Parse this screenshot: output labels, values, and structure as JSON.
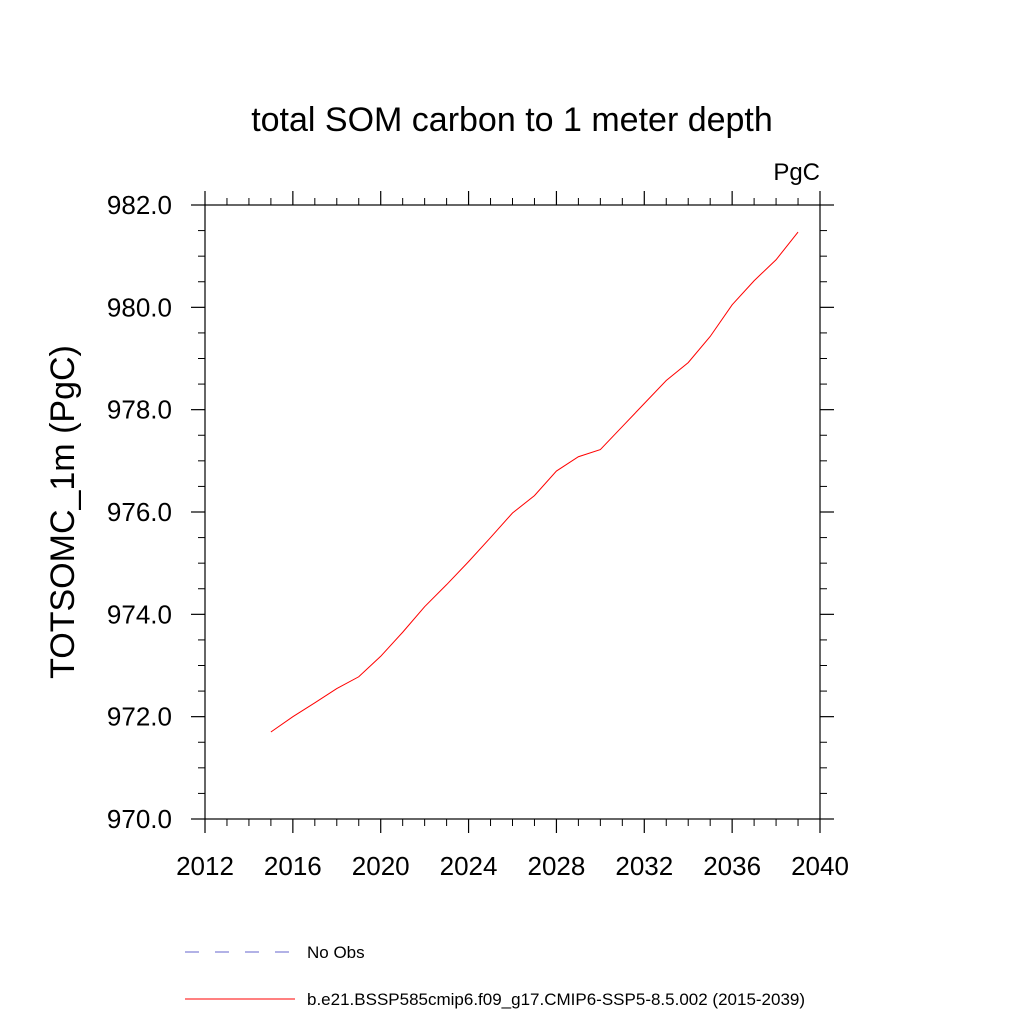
{
  "chart_data": {
    "type": "line",
    "title": "total SOM carbon to 1 meter depth",
    "units_label": "PgC",
    "ylabel": "TOTSOMC_1m  (PgC)",
    "xlabel": "",
    "xlim": [
      2012,
      2040
    ],
    "ylim": [
      970,
      982
    ],
    "x_ticks": [
      2012,
      2016,
      2020,
      2024,
      2028,
      2032,
      2036,
      2040
    ],
    "x_tick_labels": [
      "2012",
      "2016",
      "2020",
      "2024",
      "2028",
      "2032",
      "2036",
      "2040"
    ],
    "y_ticks": [
      970,
      972,
      974,
      976,
      978,
      980,
      982
    ],
    "y_tick_labels": [
      "970.0",
      "972.0",
      "974.0",
      "976.0",
      "978.0",
      "980.0",
      "982.0"
    ],
    "grid": false,
    "series": [
      {
        "name": "b.e21.BSSP585cmip6.f09_g17.CMIP6-SSP5-8.5.002 (2015-2039)",
        "color": "#ff0000",
        "dash": "solid",
        "x": [
          2015,
          2016,
          2017,
          2018,
          2019,
          2020,
          2021,
          2022,
          2023,
          2024,
          2025,
          2026,
          2027,
          2028,
          2029,
          2030,
          2031,
          2032,
          2033,
          2034,
          2035,
          2036,
          2037,
          2038,
          2039
        ],
        "values": [
          971.7,
          972.0,
          972.27,
          972.55,
          972.78,
          973.18,
          973.65,
          974.15,
          974.58,
          975.03,
          975.5,
          975.98,
          976.32,
          976.8,
          977.08,
          977.22,
          977.67,
          978.12,
          978.57,
          978.92,
          979.43,
          980.05,
          980.52,
          980.93,
          981.47
        ]
      }
    ],
    "legend": [
      {
        "label": "No Obs",
        "color": "#6666cc",
        "dash": "dashed"
      },
      {
        "label": "b.e21.BSSP585cmip6.f09_g17.CMIP6-SSP5-8.5.002 (2015-2039)",
        "color": "#ff0000",
        "dash": "solid"
      }
    ],
    "legend_position": "bottom"
  }
}
